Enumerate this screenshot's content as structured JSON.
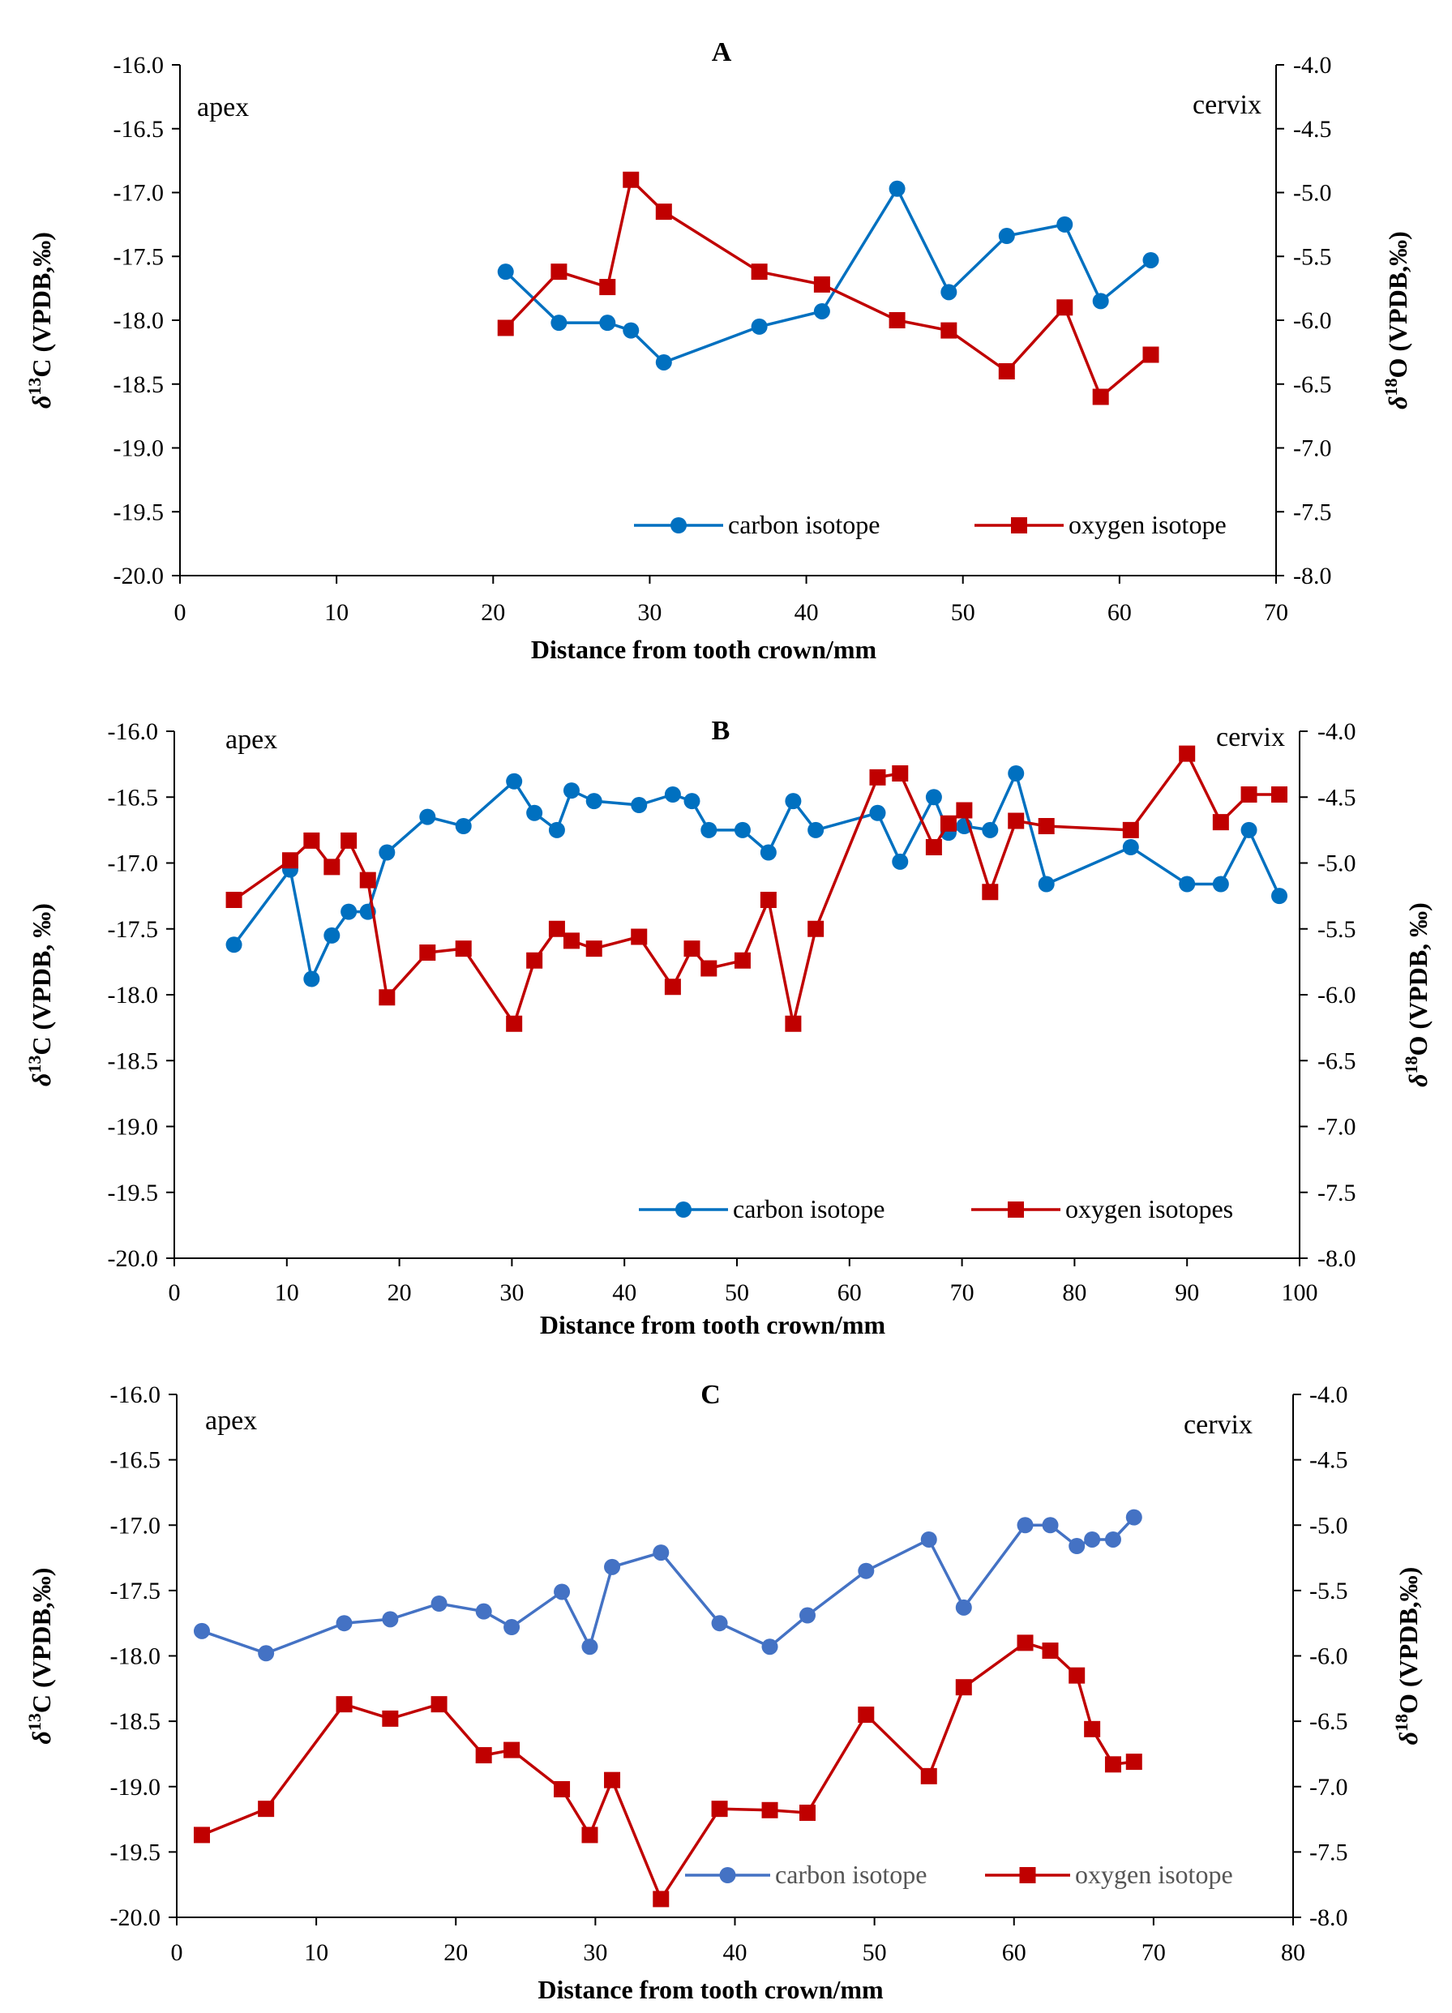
{
  "chart_data": [
    {
      "type": "line",
      "title": "A",
      "corner_left": "apex",
      "corner_right": "cervix",
      "xlabel": "Distance from tooth crown/mm",
      "ylabel_left": {
        "pre": "δ",
        "sup": "13",
        "post": "C (VPDB,‰)"
      },
      "ylabel_right": {
        "pre": "δ",
        "sup": "18",
        "post": "O (VPDB,‰)"
      },
      "xlim": [
        0,
        70
      ],
      "x_ticks": [
        "0",
        "10",
        "20",
        "30",
        "40",
        "50",
        "60",
        "70"
      ],
      "ylim_left": [
        -20,
        -16
      ],
      "y_ticks_left": [
        "-16.0",
        "-16.5",
        "-17.0",
        "-17.5",
        "-18.0",
        "-18.5",
        "-19.0",
        "-19.5",
        "-20.0"
      ],
      "ylim_right": [
        -8,
        -4
      ],
      "y_ticks_right": [
        "-4.0",
        "-4.5",
        "-5.0",
        "-5.5",
        "-6.0",
        "-6.5",
        "-7.0",
        "-7.5",
        "-8.0"
      ],
      "grid": false,
      "legend_position": "bottom-right",
      "series": [
        {
          "name": "carbon isotope",
          "axis": "left",
          "marker": "circle",
          "color": "#0070C0",
          "x": [
            20.8,
            24.2,
            27.3,
            28.8,
            30.9,
            37.0,
            41.0,
            45.8,
            49.1,
            52.8,
            56.5,
            58.8,
            62.0
          ],
          "y": [
            -17.62,
            -18.02,
            -18.02,
            -18.08,
            -18.33,
            -18.05,
            -17.93,
            -16.97,
            -17.78,
            -17.34,
            -17.25,
            -17.85,
            -17.53
          ]
        },
        {
          "name": "oxygen isotope",
          "axis": "right",
          "marker": "square",
          "color": "#C00000",
          "x": [
            20.8,
            24.2,
            27.3,
            28.8,
            30.9,
            37.0,
            41.0,
            45.8,
            49.1,
            52.8,
            56.5,
            58.8,
            62.0
          ],
          "y": [
            -6.06,
            -5.62,
            -5.74,
            -4.9,
            -5.15,
            -5.62,
            -5.72,
            -6.0,
            -6.08,
            -6.4,
            -5.9,
            -6.6,
            -6.27
          ]
        }
      ]
    },
    {
      "type": "line",
      "title": "B",
      "corner_left": "apex",
      "corner_right": "cervix",
      "xlabel": "Distance from tooth crown/mm",
      "ylabel_left": {
        "pre": "δ",
        "sup": "13",
        "post": "C (VPDB, ‰)"
      },
      "ylabel_right": {
        "pre": "δ",
        "sup": "18",
        "post": "O (VPDB, ‰)"
      },
      "xlim": [
        0,
        100
      ],
      "x_ticks": [
        "0",
        "10",
        "20",
        "30",
        "40",
        "50",
        "60",
        "70",
        "80",
        "90",
        "100"
      ],
      "ylim_left": [
        -20,
        -16
      ],
      "y_ticks_left": [
        "-16.0",
        "-16.5",
        "-17.0",
        "-17.5",
        "-18.0",
        "-18.5",
        "-19.0",
        "-19.5",
        "-20.0"
      ],
      "ylim_right": [
        -8,
        -4
      ],
      "y_ticks_right": [
        "-4.0",
        "-4.5",
        "-5.0",
        "-5.5",
        "-6.0",
        "-6.5",
        "-7.0",
        "-7.5",
        "-8.0"
      ],
      "grid": false,
      "legend_position": "bottom-right",
      "series": [
        {
          "name": "carbon isotope",
          "axis": "left",
          "marker": "circle",
          "color": "#0070C0",
          "x": [
            5.3,
            10.3,
            12.2,
            14.0,
            15.5,
            17.2,
            18.9,
            22.5,
            25.7,
            30.2,
            32.0,
            34.0,
            35.3,
            37.3,
            41.3,
            44.3,
            46.0,
            47.5,
            50.5,
            52.8,
            55.0,
            57.0,
            62.5,
            64.5,
            67.5,
            68.8,
            70.2,
            72.5,
            74.8,
            77.5,
            85.0,
            90.0,
            93.0,
            95.5,
            98.2
          ],
          "y": [
            -17.62,
            -17.05,
            -17.88,
            -17.55,
            -17.37,
            -17.37,
            -16.92,
            -16.65,
            -16.72,
            -16.38,
            -16.62,
            -16.75,
            -16.45,
            -16.53,
            -16.56,
            -16.48,
            -16.53,
            -16.75,
            -16.75,
            -16.92,
            -16.53,
            -16.75,
            -16.62,
            -16.99,
            -16.5,
            -16.77,
            -16.72,
            -16.75,
            -16.32,
            -17.16,
            -16.88,
            -17.16,
            -17.16,
            -16.75,
            -17.25
          ]
        },
        {
          "name": "oxygen isotopes",
          "axis": "right",
          "marker": "square",
          "color": "#C00000",
          "x": [
            5.3,
            10.3,
            12.2,
            14.0,
            15.5,
            17.2,
            18.9,
            22.5,
            25.7,
            30.2,
            32.0,
            34.0,
            35.3,
            37.3,
            41.3,
            44.3,
            46.0,
            47.5,
            50.5,
            52.8,
            55.0,
            57.0,
            62.5,
            64.5,
            67.5,
            68.8,
            70.2,
            72.5,
            74.8,
            77.5,
            85.0,
            90.0,
            93.0,
            95.5,
            98.2
          ],
          "y": [
            -5.28,
            -4.98,
            -4.83,
            -5.03,
            -4.83,
            -5.13,
            -6.02,
            -5.68,
            -5.65,
            -6.22,
            -5.74,
            -5.5,
            -5.59,
            -5.65,
            -5.56,
            -5.94,
            -5.65,
            -5.8,
            -5.74,
            -5.28,
            -6.22,
            -5.5,
            -4.35,
            -4.32,
            -4.88,
            -4.7,
            -4.6,
            -5.22,
            -4.68,
            -4.72,
            -4.75,
            -4.17,
            -4.69,
            -4.48,
            -4.48
          ]
        }
      ]
    },
    {
      "type": "line",
      "title": "C",
      "corner_left": "apex",
      "corner_right": "cervix",
      "xlabel": "Distance from tooth crown/mm",
      "ylabel_left": {
        "pre": "δ",
        "sup": "13",
        "post": "C (VPDB,‰)"
      },
      "ylabel_right": {
        "pre": "δ",
        "sup": "18",
        "post": "O (VPDB,‰)"
      },
      "xlim": [
        0,
        80
      ],
      "x_ticks": [
        "0",
        "10",
        "20",
        "30",
        "40",
        "50",
        "60",
        "70",
        "80"
      ],
      "ylim_left": [
        -20,
        -16
      ],
      "y_ticks_left": [
        "-16.0",
        "-16.5",
        "-17.0",
        "-17.5",
        "-18.0",
        "-18.5",
        "-19.0",
        "-19.5",
        "-20.0"
      ],
      "ylim_right": [
        -8,
        -4
      ],
      "y_ticks_right": [
        "-4.0",
        "-4.5",
        "-5.0",
        "-5.5",
        "-6.0",
        "-6.5",
        "-7.0",
        "-7.5",
        "-8.0"
      ],
      "grid": false,
      "legend_position": "bottom-right",
      "series": [
        {
          "name": "carbon isotope",
          "axis": "left",
          "marker": "circle",
          "color": "#4472C4",
          "x": [
            1.8,
            6.4,
            12.0,
            15.3,
            18.8,
            22.0,
            24.0,
            27.6,
            29.6,
            31.2,
            34.7,
            38.9,
            42.5,
            45.2,
            49.4,
            53.9,
            56.4,
            60.8,
            62.6,
            64.5,
            65.6,
            67.1,
            68.6
          ],
          "y": [
            -17.81,
            -17.98,
            -17.75,
            -17.72,
            -17.6,
            -17.66,
            -17.78,
            -17.51,
            -17.93,
            -17.32,
            -17.21,
            -17.75,
            -17.93,
            -17.69,
            -17.35,
            -17.11,
            -17.63,
            -17.0,
            -17.0,
            -17.16,
            -17.11,
            -17.11,
            -16.94
          ]
        },
        {
          "name": "oxygen isotope",
          "axis": "right",
          "marker": "square",
          "color": "#C00000",
          "x": [
            1.8,
            6.4,
            12.0,
            15.3,
            18.8,
            22.0,
            24.0,
            27.6,
            29.6,
            31.2,
            34.7,
            38.9,
            42.5,
            45.2,
            49.4,
            53.9,
            56.4,
            60.8,
            62.6,
            64.5,
            65.6,
            67.1,
            68.6
          ],
          "y": [
            -7.37,
            -7.17,
            -6.37,
            -6.48,
            -6.37,
            -6.76,
            -6.72,
            -7.02,
            -7.37,
            -6.95,
            -7.86,
            -7.17,
            -7.18,
            -7.2,
            -6.45,
            -6.92,
            -6.24,
            -5.9,
            -5.96,
            -6.15,
            -6.56,
            -6.83,
            -6.81
          ]
        }
      ]
    }
  ]
}
